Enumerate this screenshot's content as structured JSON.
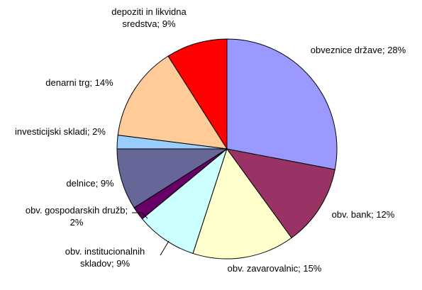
{
  "chart_data": {
    "type": "pie",
    "categories": [
      "obveznice države;",
      "obv. bank;",
      "obv. zavarovalnic;",
      "obv. institucionalnih skladov;",
      "obv. gospodarskih družb;",
      "delnice;",
      "investicijski skladi;",
      "denarni trg;",
      "depoziti in likvidna sredstva;"
    ],
    "values": [
      28,
      12,
      15,
      9,
      2,
      9,
      2,
      14,
      9
    ],
    "value_labels": [
      "28%",
      "12%",
      "15%",
      "9%",
      "2%",
      "9%",
      "2%",
      "14%",
      "9%"
    ],
    "colors": [
      "#9999ff",
      "#993366",
      "#ffffcc",
      "#ccffff",
      "#660066",
      "#666699",
      "#99ccff",
      "#ffcc99",
      "#ff0000"
    ]
  }
}
